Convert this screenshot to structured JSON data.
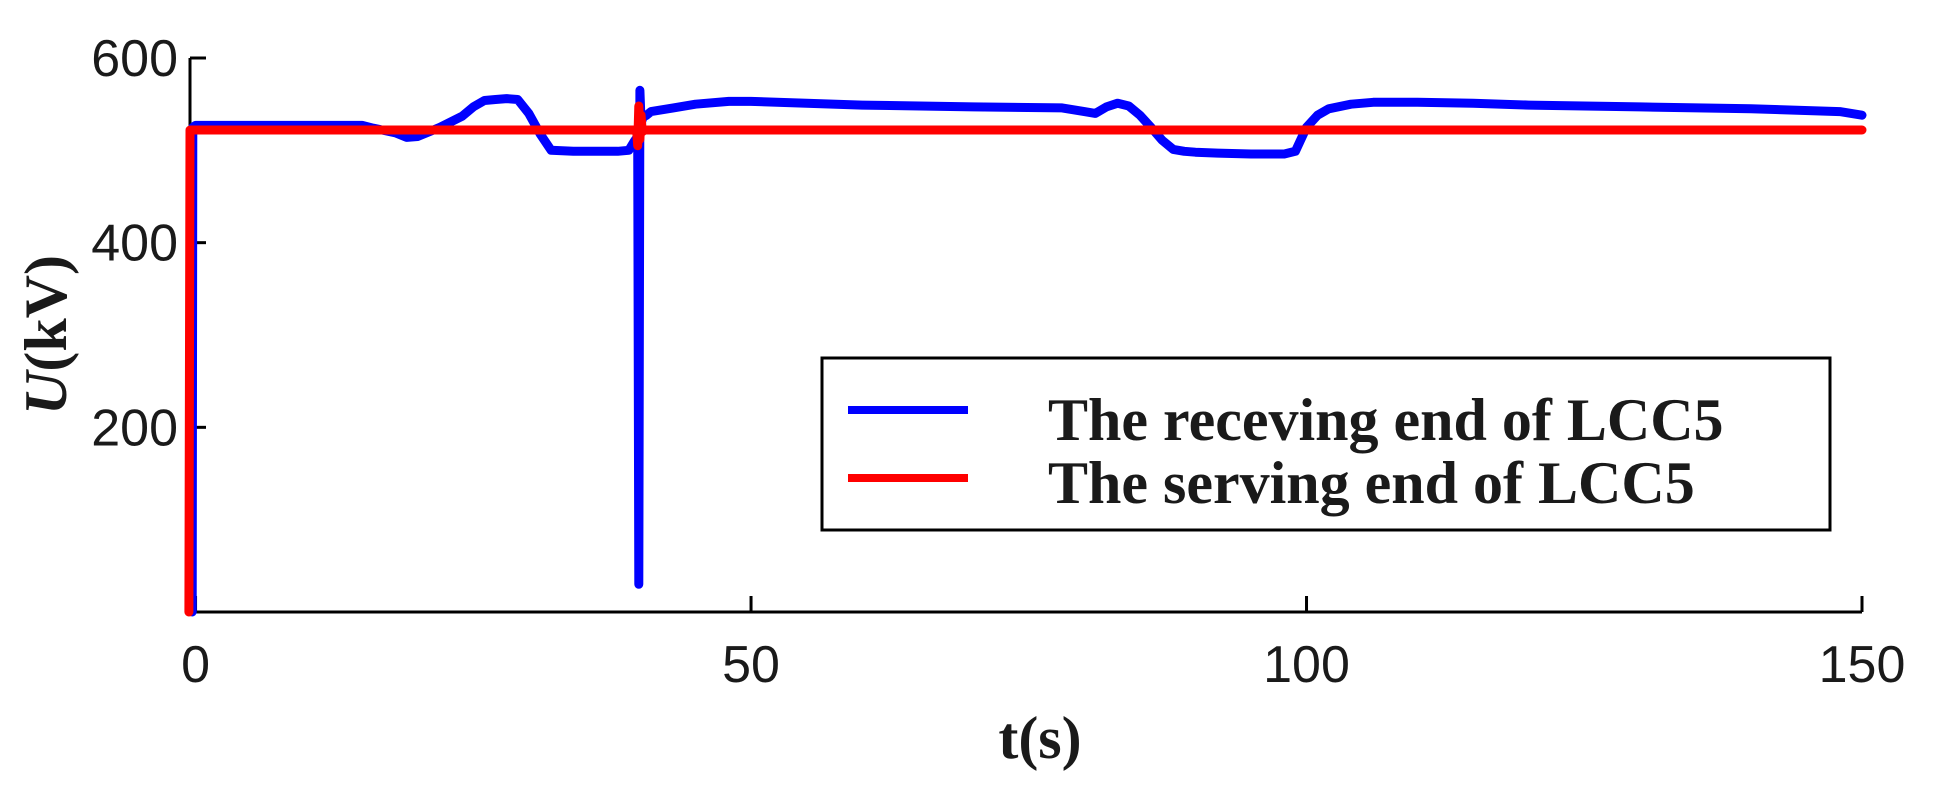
{
  "chart_data": {
    "type": "line",
    "title": "",
    "xlabel": "t(s)",
    "ylabel_italic": "U",
    "ylabel_rest": "(kV)",
    "xlim": [
      -0.5,
      150
    ],
    "ylim": [
      0,
      600
    ],
    "xticks": [
      0,
      50,
      100,
      150
    ],
    "yticks": [
      200,
      400,
      600
    ],
    "grid": false,
    "legend_placement": "center-right",
    "series": [
      {
        "name": "The receving end of LCC5",
        "color": "#0000ff",
        "x": [
          -0.3,
          -0.25,
          0,
          5,
          10,
          15,
          16,
          18,
          19,
          20,
          22,
          24,
          25,
          26,
          27,
          28,
          29,
          30,
          31,
          32,
          34,
          36,
          38,
          39,
          39.5,
          39.8,
          39.9,
          40.0,
          40.1,
          40.3,
          40.6,
          41,
          43,
          45,
          48,
          50,
          55,
          60,
          70,
          78,
          80,
          81,
          82,
          83,
          84,
          85,
          86,
          87,
          88,
          89,
          90,
          92,
          95,
          98,
          99,
          100,
          101,
          102,
          104,
          106,
          108,
          110,
          115,
          120,
          130,
          140,
          148,
          150
        ],
        "y": [
          0,
          525,
          527,
          527,
          527,
          527,
          524,
          519,
          514,
          515,
          525,
          537,
          547,
          554,
          555,
          556,
          555,
          540,
          518,
          500,
          499,
          499,
          499,
          500,
          510,
          515,
          30,
          565,
          530,
          536,
          538,
          542,
          546,
          550,
          553,
          553,
          551,
          549,
          547,
          546,
          542,
          540,
          547,
          551,
          548,
          538,
          525,
          511,
          501,
          499,
          498,
          497,
          496,
          496,
          499,
          525,
          538,
          545,
          550,
          552,
          552,
          552,
          551,
          549,
          547,
          545,
          542,
          538
        ]
      },
      {
        "name": "The serving end of LCC5",
        "color": "#ff0000",
        "x": [
          -0.6,
          -0.5,
          0,
          20,
          39.7,
          39.8,
          39.9,
          40.0,
          40.1,
          40.2,
          40.4,
          60,
          100,
          150
        ],
        "y": [
          0,
          522,
          522,
          522,
          522,
          505,
          548,
          512,
          538,
          520,
          522,
          522,
          522,
          522
        ]
      }
    ]
  }
}
